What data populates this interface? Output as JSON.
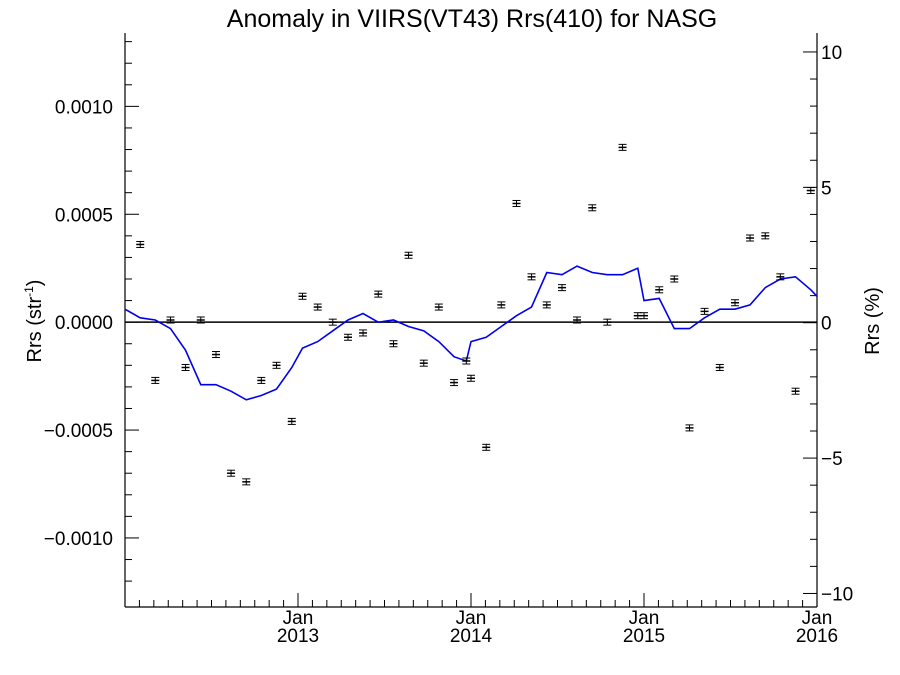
{
  "chart_data": {
    "type": "scatter",
    "title": "Anomaly in VIIRS(VT43) Rrs(410) for NASG",
    "ylabel_left": {
      "main": "Rrs (str",
      "sup": "-1",
      "close": ")"
    },
    "ylabel_right": "Rrs (%)",
    "x_range": [
      2012.0,
      2016.0
    ],
    "ylim_left": [
      -0.00132,
      0.00134
    ],
    "ylim_right": [
      -10.5,
      10.7
    ],
    "left_ticks": [
      {
        "value": 0.001,
        "label": "0.0010"
      },
      {
        "value": 0.0005,
        "label": "0.0005"
      },
      {
        "value": 0.0,
        "label": "0.0000"
      },
      {
        "value": -0.0005,
        "label": "−0.0005"
      },
      {
        "value": -0.001,
        "label": "−0.0010"
      }
    ],
    "right_ticks": [
      {
        "value": 10,
        "label": "10"
      },
      {
        "value": 5,
        "label": "5"
      },
      {
        "value": 0,
        "label": "0"
      },
      {
        "value": -5,
        "label": "−5"
      },
      {
        "value": -10,
        "label": "−10"
      }
    ],
    "x_ticks": [
      {
        "value": 2013.0,
        "month": "Jan",
        "year": "2013"
      },
      {
        "value": 2014.0,
        "month": "Jan",
        "year": "2014"
      },
      {
        "value": 2015.0,
        "month": "Jan",
        "year": "2015"
      },
      {
        "value": 2016.0,
        "month": "Jan",
        "year": "2016"
      }
    ],
    "zero_line": 0.0,
    "colors": {
      "points": "#000000",
      "series_line": "#0000ee",
      "zero_line": "#000000"
    },
    "points": [
      {
        "x": 2012.088,
        "y": 0.00036
      },
      {
        "x": 2012.175,
        "y": -0.00027
      },
      {
        "x": 2012.263,
        "y": 1e-05
      },
      {
        "x": 2012.35,
        "y": -0.00021
      },
      {
        "x": 2012.438,
        "y": 1e-05
      },
      {
        "x": 2012.526,
        "y": -0.00015
      },
      {
        "x": 2012.613,
        "y": -0.0007
      },
      {
        "x": 2012.701,
        "y": -0.00074
      },
      {
        "x": 2012.788,
        "y": -0.00027
      },
      {
        "x": 2012.876,
        "y": -0.0002
      },
      {
        "x": 2012.964,
        "y": -0.00046
      },
      {
        "x": 2013.026,
        "y": 0.00012
      },
      {
        "x": 2013.114,
        "y": 7e-05
      },
      {
        "x": 2013.201,
        "y": 0.0
      },
      {
        "x": 2013.289,
        "y": -7e-05
      },
      {
        "x": 2013.376,
        "y": -5e-05
      },
      {
        "x": 2013.464,
        "y": 0.00013
      },
      {
        "x": 2013.552,
        "y": -0.0001
      },
      {
        "x": 2013.639,
        "y": 0.00031
      },
      {
        "x": 2013.727,
        "y": -0.00019
      },
      {
        "x": 2013.814,
        "y": 7e-05
      },
      {
        "x": 2013.902,
        "y": -0.00028
      },
      {
        "x": 2013.973,
        "y": -0.00018
      },
      {
        "x": 2014.0,
        "y": -0.00026
      },
      {
        "x": 2014.088,
        "y": -0.00058
      },
      {
        "x": 2014.175,
        "y": 8e-05
      },
      {
        "x": 2014.263,
        "y": 0.00055
      },
      {
        "x": 2014.35,
        "y": 0.00021
      },
      {
        "x": 2014.438,
        "y": 8e-05
      },
      {
        "x": 2014.526,
        "y": 0.00016
      },
      {
        "x": 2014.613,
        "y": 1e-05
      },
      {
        "x": 2014.701,
        "y": 0.00053
      },
      {
        "x": 2014.788,
        "y": 0.0
      },
      {
        "x": 2014.876,
        "y": 0.00081
      },
      {
        "x": 2014.964,
        "y": 3e-05
      },
      {
        "x": 2015.0,
        "y": 3e-05
      },
      {
        "x": 2015.088,
        "y": 0.00015
      },
      {
        "x": 2015.175,
        "y": 0.0002
      },
      {
        "x": 2015.263,
        "y": -0.00049
      },
      {
        "x": 2015.35,
        "y": 5e-05
      },
      {
        "x": 2015.438,
        "y": -0.00021
      },
      {
        "x": 2015.526,
        "y": 9e-05
      },
      {
        "x": 2015.613,
        "y": 0.00039
      },
      {
        "x": 2015.701,
        "y": 0.0004
      },
      {
        "x": 2015.788,
        "y": 0.00021
      },
      {
        "x": 2015.876,
        "y": -0.00032
      },
      {
        "x": 2015.964,
        "y": 0.00061
      }
    ],
    "line": [
      {
        "x": 2012.0,
        "y": 6e-05
      },
      {
        "x": 2012.088,
        "y": 2e-05
      },
      {
        "x": 2012.175,
        "y": 1e-05
      },
      {
        "x": 2012.263,
        "y": -3e-05
      },
      {
        "x": 2012.35,
        "y": -0.00013
      },
      {
        "x": 2012.438,
        "y": -0.00029
      },
      {
        "x": 2012.526,
        "y": -0.00029
      },
      {
        "x": 2012.613,
        "y": -0.00032
      },
      {
        "x": 2012.701,
        "y": -0.00036
      },
      {
        "x": 2012.788,
        "y": -0.00034
      },
      {
        "x": 2012.876,
        "y": -0.00031
      },
      {
        "x": 2012.964,
        "y": -0.00021
      },
      {
        "x": 2013.026,
        "y": -0.00012
      },
      {
        "x": 2013.114,
        "y": -9e-05
      },
      {
        "x": 2013.201,
        "y": -4e-05
      },
      {
        "x": 2013.289,
        "y": 1e-05
      },
      {
        "x": 2013.376,
        "y": 4e-05
      },
      {
        "x": 2013.464,
        "y": 0.0
      },
      {
        "x": 2013.552,
        "y": 1e-05
      },
      {
        "x": 2013.639,
        "y": -2e-05
      },
      {
        "x": 2013.727,
        "y": -4e-05
      },
      {
        "x": 2013.814,
        "y": -9e-05
      },
      {
        "x": 2013.902,
        "y": -0.00016
      },
      {
        "x": 2013.973,
        "y": -0.00018
      },
      {
        "x": 2014.0,
        "y": -9e-05
      },
      {
        "x": 2014.088,
        "y": -7e-05
      },
      {
        "x": 2014.175,
        "y": -2e-05
      },
      {
        "x": 2014.263,
        "y": 3e-05
      },
      {
        "x": 2014.35,
        "y": 7e-05
      },
      {
        "x": 2014.438,
        "y": 0.00023
      },
      {
        "x": 2014.526,
        "y": 0.00022
      },
      {
        "x": 2014.613,
        "y": 0.00026
      },
      {
        "x": 2014.701,
        "y": 0.00023
      },
      {
        "x": 2014.788,
        "y": 0.00022
      },
      {
        "x": 2014.876,
        "y": 0.00022
      },
      {
        "x": 2014.964,
        "y": 0.00025
      },
      {
        "x": 2015.0,
        "y": 0.0001
      },
      {
        "x": 2015.088,
        "y": 0.00011
      },
      {
        "x": 2015.175,
        "y": -3e-05
      },
      {
        "x": 2015.263,
        "y": -3e-05
      },
      {
        "x": 2015.35,
        "y": 2e-05
      },
      {
        "x": 2015.438,
        "y": 6e-05
      },
      {
        "x": 2015.526,
        "y": 6e-05
      },
      {
        "x": 2015.613,
        "y": 8e-05
      },
      {
        "x": 2015.701,
        "y": 0.00016
      },
      {
        "x": 2015.788,
        "y": 0.0002
      },
      {
        "x": 2015.876,
        "y": 0.00021
      },
      {
        "x": 2015.964,
        "y": 0.00015
      },
      {
        "x": 2016.0,
        "y": 0.00012
      }
    ]
  }
}
